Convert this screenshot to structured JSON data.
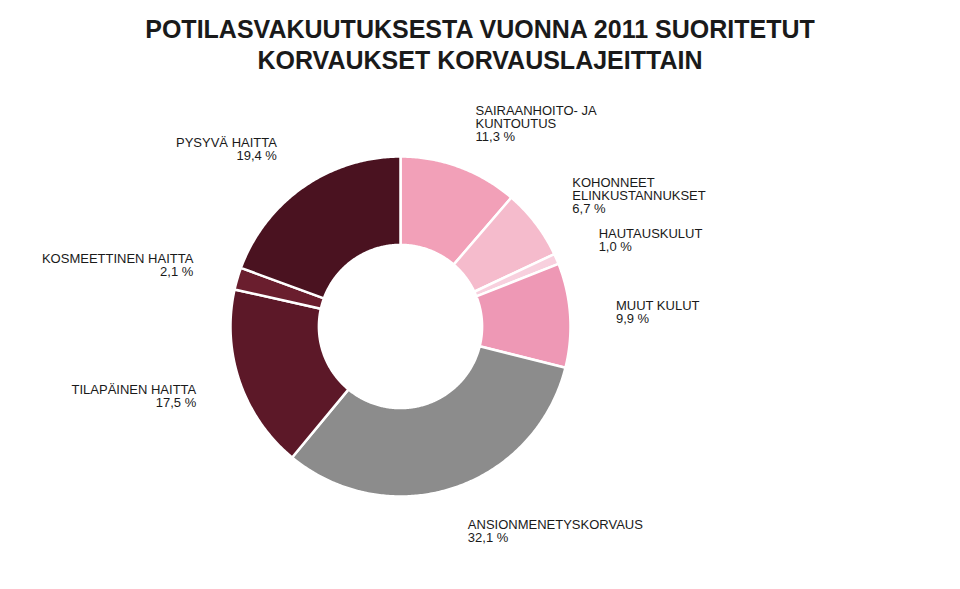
{
  "chart_data": {
    "type": "pie",
    "title": "POTILASVAKUUTUKSESTA VUONNA 2011 SUORITETUT\nKORVAUKSET KORVAUSLAJEITTAIN",
    "categories": [
      "SAIRAANHOITO- JA\nKUNTOUTUS",
      "KOHONNEET\nELINKUSTANNUKSET",
      "HAUTAUSKULUT",
      "MUUT KULUT",
      "ANSIONMENETYSKORVAUS",
      "TILAPÄINEN HAITTA",
      "KOSMEETTINEN HAITTA",
      "PYSYVÄ HAITTA"
    ],
    "values": [
      11.3,
      6.7,
      1.0,
      9.9,
      32.1,
      17.5,
      2.1,
      19.4
    ],
    "value_labels": [
      "11,3 %",
      "6,7 %",
      "1,0 %",
      "9,9 %",
      "32,1 %",
      "17,5 %",
      "2,1 %",
      "19,4 %"
    ],
    "colors": [
      "#F2A0B8",
      "#F5BBCC",
      "#F8D0DE",
      "#EE98B5",
      "#8C8C8C",
      "#5C1828",
      "#6A1E2E",
      "#4A1220"
    ],
    "data_labels": true
  }
}
